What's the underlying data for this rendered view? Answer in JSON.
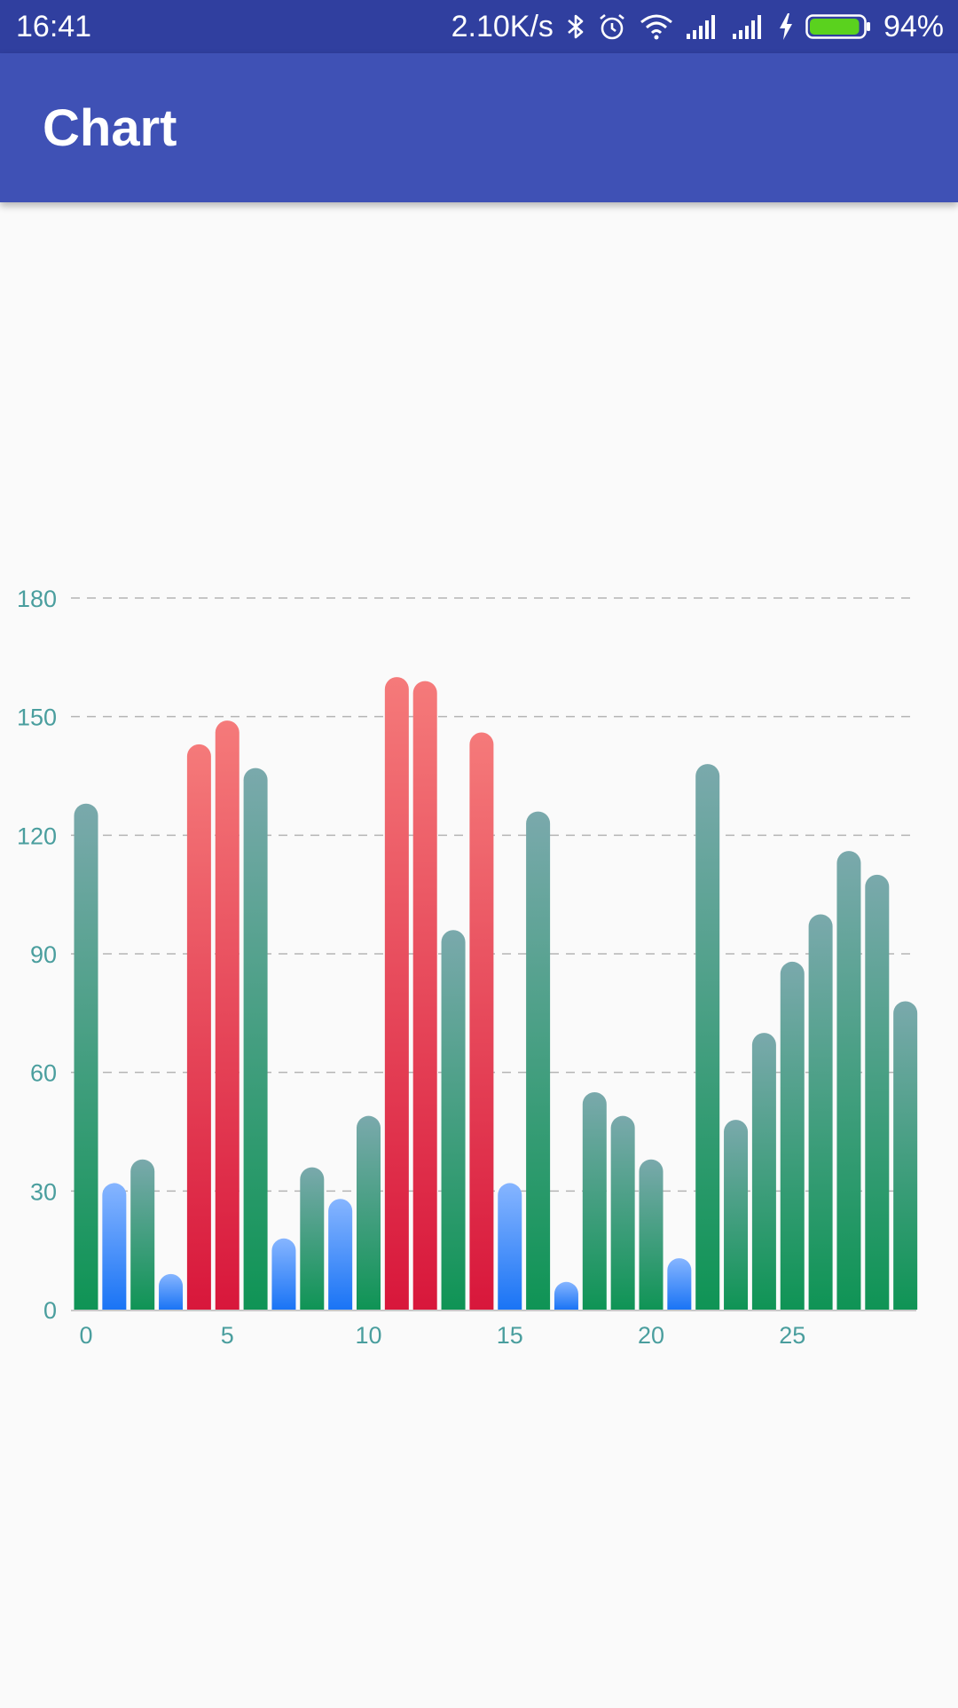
{
  "status_bar": {
    "time": "16:41",
    "network_speed": "2.10K/s",
    "battery_percent": "94%",
    "battery_level": 0.94,
    "icons": [
      "bluetooth-icon",
      "alarm-icon",
      "wifi-icon",
      "signal-icon",
      "signal-icon",
      "charging-icon",
      "battery-icon"
    ]
  },
  "app_bar": {
    "title": "Chart"
  },
  "colors": {
    "status_bar": "#303f9f",
    "app_bar": "#3f51b5",
    "axis_text": "#4a9e9e",
    "green_top": "#7aa9ac",
    "green_bottom": "#0f9455",
    "blue_top": "#86b5ff",
    "blue_bottom": "#1a74f5",
    "red_top": "#f57a7a",
    "red_bottom": "#d8173b"
  },
  "chart_data": {
    "type": "bar",
    "title": "",
    "xlabel": "",
    "ylabel": "",
    "ylim": [
      0,
      180
    ],
    "xlim": [
      0,
      29
    ],
    "y_ticks": [
      0,
      30,
      60,
      90,
      120,
      150,
      180
    ],
    "x_ticks": [
      0,
      5,
      10,
      15,
      20,
      25
    ],
    "grid": "horizontal-dashed",
    "legend": "none",
    "x": [
      0,
      1,
      2,
      3,
      4,
      5,
      6,
      7,
      8,
      9,
      10,
      11,
      12,
      13,
      14,
      15,
      16,
      17,
      18,
      19,
      20,
      21,
      22,
      23,
      24,
      25,
      26,
      27,
      28,
      29
    ],
    "values": [
      128,
      32,
      38,
      9,
      143,
      149,
      137,
      18,
      36,
      28,
      49,
      160,
      159,
      96,
      146,
      32,
      126,
      7,
      55,
      49,
      38,
      13,
      138,
      48,
      70,
      88,
      100,
      116,
      110,
      78
    ],
    "colors": [
      "green",
      "blue",
      "green",
      "blue",
      "red",
      "red",
      "green",
      "blue",
      "green",
      "blue",
      "green",
      "red",
      "red",
      "green",
      "red",
      "blue",
      "green",
      "blue",
      "green",
      "green",
      "green",
      "blue",
      "green",
      "green",
      "green",
      "green",
      "green",
      "green",
      "green",
      "green"
    ]
  }
}
